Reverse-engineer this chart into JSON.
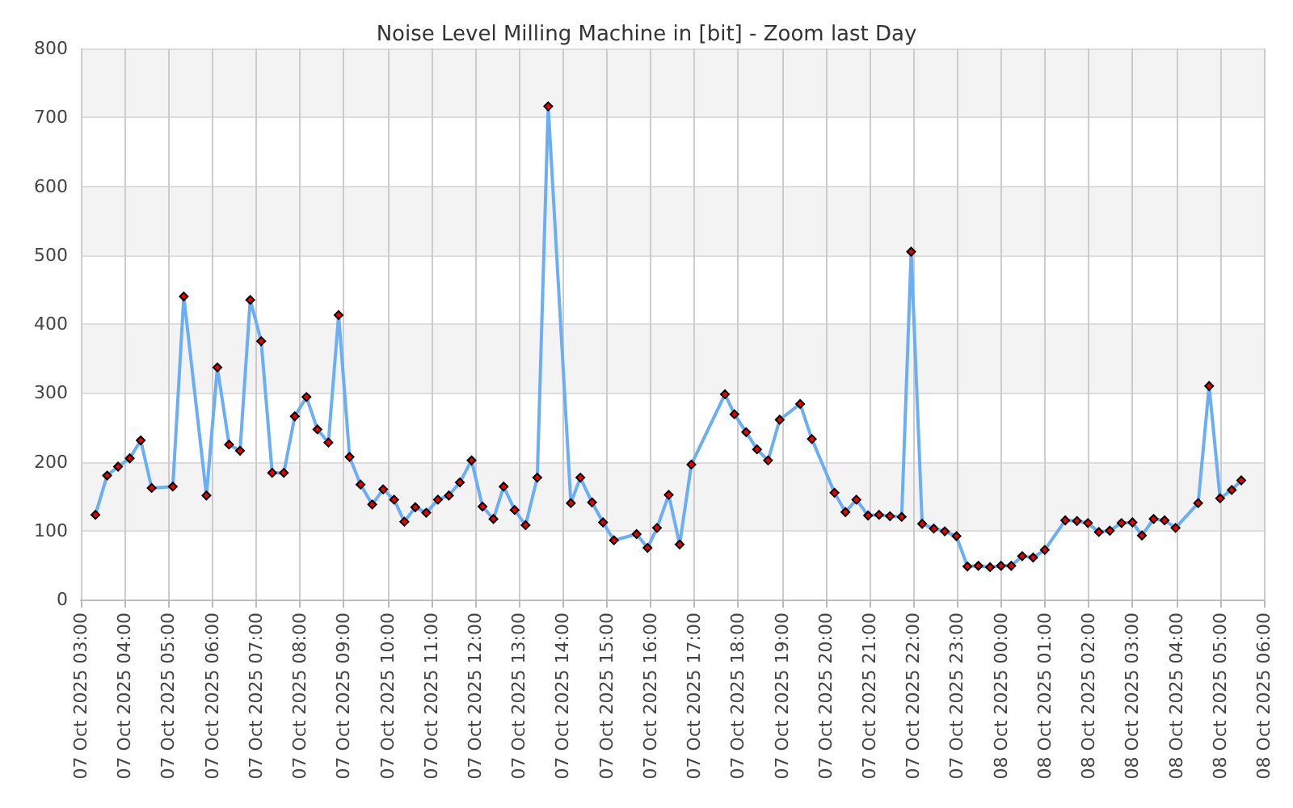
{
  "chart_data": {
    "type": "line",
    "title": "Noise Level Milling Machine in [bit] - Zoom last Day",
    "x": [
      "2025-10-07T03:20",
      "2025-10-07T03:36",
      "2025-10-07T03:51",
      "2025-10-07T04:07",
      "2025-10-07T04:22",
      "2025-10-07T04:37",
      "2025-10-07T05:06",
      "2025-10-07T05:21",
      "2025-10-07T05:52",
      "2025-10-07T06:07",
      "2025-10-07T06:23",
      "2025-10-07T06:38",
      "2025-10-07T06:52",
      "2025-10-07T07:07",
      "2025-10-07T07:22",
      "2025-10-07T07:38",
      "2025-10-07T07:53",
      "2025-10-07T08:09",
      "2025-10-07T08:24",
      "2025-10-07T08:39",
      "2025-10-07T08:53",
      "2025-10-07T09:08",
      "2025-10-07T09:23",
      "2025-10-07T09:39",
      "2025-10-07T09:54",
      "2025-10-07T10:09",
      "2025-10-07T10:23",
      "2025-10-07T10:38",
      "2025-10-07T10:53",
      "2025-10-07T11:09",
      "2025-10-07T11:24",
      "2025-10-07T11:39",
      "2025-10-07T11:55",
      "2025-10-07T12:10",
      "2025-10-07T12:25",
      "2025-10-07T12:39",
      "2025-10-07T12:54",
      "2025-10-07T13:09",
      "2025-10-07T13:25",
      "2025-10-07T13:40",
      "2025-10-07T14:11",
      "2025-10-07T14:24",
      "2025-10-07T14:40",
      "2025-10-07T14:55",
      "2025-10-07T15:10",
      "2025-10-07T15:41",
      "2025-10-07T15:56",
      "2025-10-07T16:09",
      "2025-10-07T16:25",
      "2025-10-07T16:40",
      "2025-10-07T16:56",
      "2025-10-07T17:42",
      "2025-10-07T17:55",
      "2025-10-07T18:11",
      "2025-10-07T18:26",
      "2025-10-07T18:41",
      "2025-10-07T18:57",
      "2025-10-07T19:25",
      "2025-10-07T19:41",
      "2025-10-07T20:12",
      "2025-10-07T20:27",
      "2025-10-07T20:42",
      "2025-10-07T20:58",
      "2025-10-07T21:13",
      "2025-10-07T21:28",
      "2025-10-07T21:44",
      "2025-10-07T21:57",
      "2025-10-07T22:12",
      "2025-10-07T22:28",
      "2025-10-07T22:43",
      "2025-10-07T22:59",
      "2025-10-07T23:14",
      "2025-10-07T23:29",
      "2025-10-07T23:45",
      "2025-10-08T00:00",
      "2025-10-08T00:14",
      "2025-10-08T00:29",
      "2025-10-08T00:44",
      "2025-10-08T01:00",
      "2025-10-08T01:28",
      "2025-10-08T01:44",
      "2025-10-08T01:59",
      "2025-10-08T02:14",
      "2025-10-08T02:29",
      "2025-10-08T02:45",
      "2025-10-08T03:00",
      "2025-10-08T03:13",
      "2025-10-08T03:29",
      "2025-10-08T03:44",
      "2025-10-08T03:59",
      "2025-10-08T04:30",
      "2025-10-08T04:45",
      "2025-10-08T05:00",
      "2025-10-08T05:16",
      "2025-10-08T05:29"
    ],
    "series": [
      {
        "color": "#6aaef5",
        "values": [
          123,
          180,
          193,
          205,
          231,
          162,
          164,
          440,
          151,
          337,
          225,
          216,
          435,
          375,
          184,
          184,
          266,
          294,
          247,
          228,
          413,
          207,
          167,
          138,
          160,
          145,
          113,
          134,
          126,
          145,
          151,
          170,
          202,
          135,
          117,
          164,
          130,
          108,
          177,
          716,
          140,
          177,
          141,
          112,
          86,
          95,
          75,
          104,
          152,
          80,
          196,
          298,
          269,
          243,
          218,
          202,
          261,
          284,
          233,
          155,
          127,
          145,
          122,
          123,
          121,
          120,
          505,
          110,
          103,
          99,
          92,
          48,
          49,
          47,
          49,
          49,
          63,
          61,
          72,
          115,
          114,
          111,
          98,
          100,
          111,
          112,
          93,
          117,
          115,
          104,
          140,
          310,
          147,
          159,
          173
        ]
      }
    ],
    "xlim": [
      "2025-10-07T03:00",
      "2025-10-08T06:00"
    ],
    "xticks": [
      {
        "value": "2025-10-07T03:00",
        "label": "07 Oct 2025 03:00"
      },
      {
        "value": "2025-10-07T04:00",
        "label": "07 Oct 2025 04:00"
      },
      {
        "value": "2025-10-07T05:00",
        "label": "07 Oct 2025 05:00"
      },
      {
        "value": "2025-10-07T06:00",
        "label": "07 Oct 2025 06:00"
      },
      {
        "value": "2025-10-07T07:00",
        "label": "07 Oct 2025 07:00"
      },
      {
        "value": "2025-10-07T08:00",
        "label": "07 Oct 2025 08:00"
      },
      {
        "value": "2025-10-07T09:00",
        "label": "07 Oct 2025 09:00"
      },
      {
        "value": "2025-10-07T10:00",
        "label": "07 Oct 2025 10:00"
      },
      {
        "value": "2025-10-07T11:00",
        "label": "07 Oct 2025 11:00"
      },
      {
        "value": "2025-10-07T12:00",
        "label": "07 Oct 2025 12:00"
      },
      {
        "value": "2025-10-07T13:00",
        "label": "07 Oct 2025 13:00"
      },
      {
        "value": "2025-10-07T14:00",
        "label": "07 Oct 2025 14:00"
      },
      {
        "value": "2025-10-07T15:00",
        "label": "07 Oct 2025 15:00"
      },
      {
        "value": "2025-10-07T16:00",
        "label": "07 Oct 2025 16:00"
      },
      {
        "value": "2025-10-07T17:00",
        "label": "07 Oct 2025 17:00"
      },
      {
        "value": "2025-10-07T18:00",
        "label": "07 Oct 2025 18:00"
      },
      {
        "value": "2025-10-07T19:00",
        "label": "07 Oct 2025 19:00"
      },
      {
        "value": "2025-10-07T20:00",
        "label": "07 Oct 2025 20:00"
      },
      {
        "value": "2025-10-07T21:00",
        "label": "07 Oct 2025 21:00"
      },
      {
        "value": "2025-10-07T22:00",
        "label": "07 Oct 2025 22:00"
      },
      {
        "value": "2025-10-07T23:00",
        "label": "07 Oct 2025 23:00"
      },
      {
        "value": "2025-10-08T00:00",
        "label": "08 Oct 2025 00:00"
      },
      {
        "value": "2025-10-08T01:00",
        "label": "08 Oct 2025 01:00"
      },
      {
        "value": "2025-10-08T02:00",
        "label": "08 Oct 2025 02:00"
      },
      {
        "value": "2025-10-08T03:00",
        "label": "08 Oct 2025 03:00"
      },
      {
        "value": "2025-10-08T04:00",
        "label": "08 Oct 2025 04:00"
      },
      {
        "value": "2025-10-08T05:00",
        "label": "08 Oct 2025 05:00"
      },
      {
        "value": "2025-10-08T06:00",
        "label": "08 Oct 2025 06:00"
      }
    ],
    "ylim": [
      0,
      800
    ],
    "yticks": [
      0,
      100,
      200,
      300,
      400,
      500,
      600,
      700,
      800
    ],
    "grid": true,
    "marker": "diamond",
    "line_style": "solid"
  }
}
